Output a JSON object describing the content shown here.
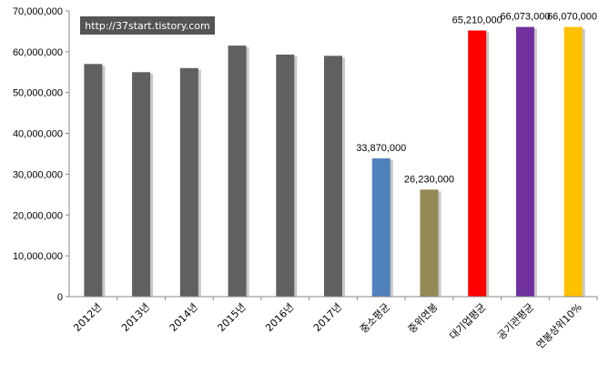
{
  "chart_data": {
    "type": "bar",
    "title": "",
    "xlabel": "",
    "ylabel": "",
    "ylim": [
      0,
      70000000
    ],
    "yticks": [
      0,
      10000000,
      20000000,
      30000000,
      40000000,
      50000000,
      60000000,
      70000000
    ],
    "ytick_labels": [
      "0",
      "10,000,000",
      "20,000,000",
      "30,000,000",
      "40,000,000",
      "50,000,000",
      "60,000,000",
      "70,000,000"
    ],
    "grid": false,
    "legend": "none",
    "watermark": "http://37start.tistory.com",
    "categories": [
      "2012년",
      "2013년",
      "2014년",
      "2015년",
      "2016년",
      "2017년",
      "중소평균",
      "중위연봉",
      "대기업평균",
      "공기관평균",
      "연봉상위10%"
    ],
    "values": [
      57000000,
      55000000,
      56000000,
      61500000,
      59300000,
      59000000,
      33870000,
      26230000,
      65210000,
      66073000,
      66070000
    ],
    "data_labels": [
      "",
      "",
      "",
      "",
      "",
      "",
      "33,870,000",
      "26,230,000",
      "65,210,000",
      "66,073,000",
      "66,070,000"
    ],
    "colors": [
      "#606060",
      "#606060",
      "#606060",
      "#606060",
      "#606060",
      "#606060",
      "#4f81bd",
      "#948a54",
      "#ff0000",
      "#7030a0",
      "#ffc000"
    ]
  }
}
